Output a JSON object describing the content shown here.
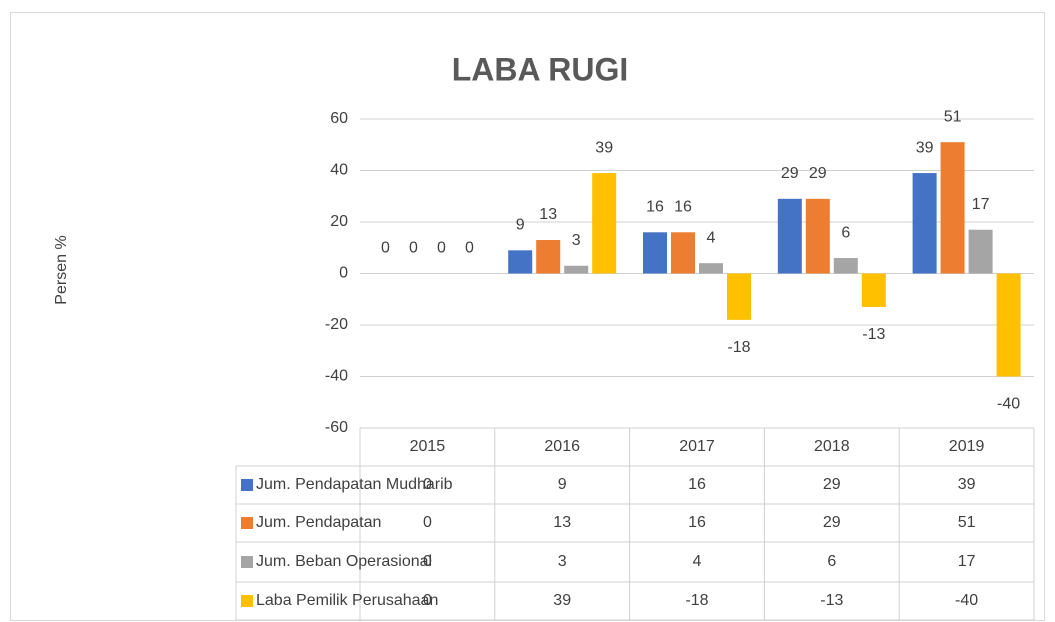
{
  "chart_data": {
    "type": "bar",
    "title": "LABA RUGI",
    "y_label": "Persen %",
    "categories": [
      "2015",
      "2016",
      "2017",
      "2018",
      "2019"
    ],
    "series": [
      {
        "name": "Jum. Pendapatan Mudharib",
        "color": "#4472c4",
        "values": [
          0,
          9,
          16,
          29,
          39
        ]
      },
      {
        "name": "Jum. Pendapatan",
        "color": "#ed7d31",
        "values": [
          0,
          13,
          16,
          29,
          51
        ]
      },
      {
        "name": "Jum. Beban Operasional",
        "color": "#a5a5a5",
        "values": [
          0,
          3,
          4,
          6,
          17
        ]
      },
      {
        "name": "Laba Pemilik Perusahaan",
        "color": "#ffc000",
        "values": [
          0,
          39,
          -18,
          -13,
          -40
        ]
      }
    ],
    "ylim": [
      -60,
      60
    ],
    "yticks": [
      -60,
      -40,
      -20,
      0,
      20,
      40,
      60
    ],
    "grid": true,
    "data_table": true
  }
}
